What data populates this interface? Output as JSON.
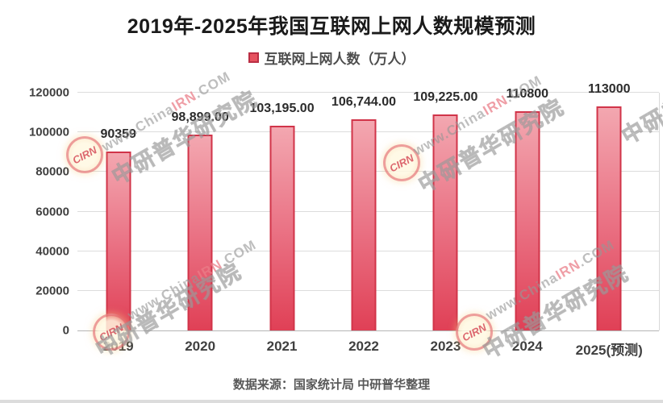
{
  "title": "2019年-2025年我国互联网上网人数规模预测",
  "legend": {
    "label": "互联网上网人数（万人）"
  },
  "chart_data": {
    "type": "bar",
    "title": "2019年-2025年我国互联网上网人数规模预测",
    "series_name": "互联网上网人数（万人）",
    "categories": [
      "2019",
      "2020",
      "2021",
      "2022",
      "2023",
      "2024",
      "2025(预测)"
    ],
    "values": [
      90359,
      98899,
      103195,
      106744,
      109225,
      110800,
      113000
    ],
    "value_labels": [
      "90359",
      "98,899.00",
      "103,195.00",
      "106,744.00",
      "109,225.00",
      "110800",
      "113000"
    ],
    "ylim": [
      0,
      120000
    ],
    "y_ticks": [
      0,
      20000,
      40000,
      60000,
      80000,
      100000,
      120000
    ],
    "y_tick_labels": [
      "0",
      "20000",
      "40000",
      "60000",
      "80000",
      "100000",
      "120000"
    ],
    "grid": true,
    "legend_position": "top",
    "colors": {
      "bar_gradient_top": "#f3a7b0",
      "bar_gradient_mid": "#ea7385",
      "bar_gradient_bottom": "#e04056",
      "bar_border": "#d13449",
      "legend_swatch": "#e6525f"
    }
  },
  "watermark": {
    "url_pre": "www.China",
    "url_mid": "IRN",
    "url_post": ".COM",
    "cn_text": "中研普华研究院",
    "badge_text": "CIRN"
  },
  "footer": "数据来源：国家统计局 中研普华整理"
}
